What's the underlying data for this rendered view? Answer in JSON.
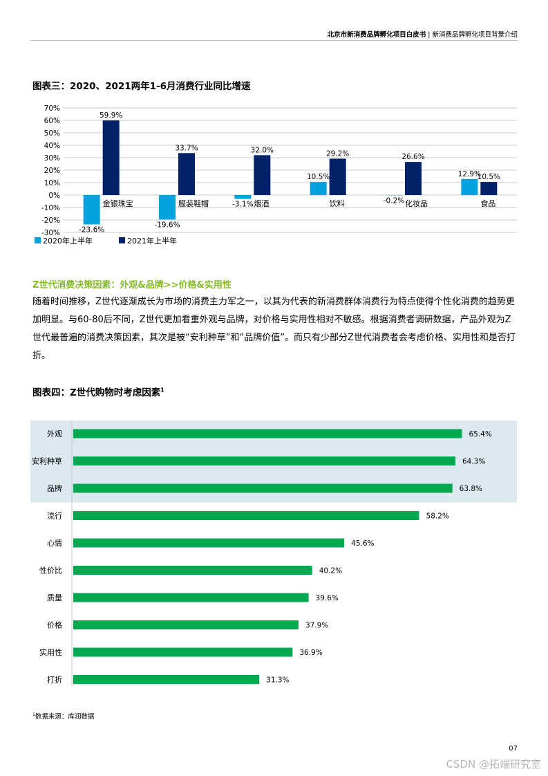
{
  "header": {
    "title": "北京市新消费品牌孵化项目白皮书",
    "separator": " | ",
    "section": "新消费品牌孵化项目背景介绍"
  },
  "figure3": {
    "title": "图表三：2020、2021两年1-6月消费行业同比增速"
  },
  "figure4": {
    "title": "图表四：Z世代购物时考虑因素",
    "title_sup": "1"
  },
  "section": {
    "title": "Z世代消费决策因素：外观&品牌>>价格&实用性",
    "paragraph": "随着时间推移，Z世代逐渐成长为市场的消费主力军之一，以其为代表的新消费群体消费行为特点使得个性化消费的趋势更加明显。与60-80后不同，Z世代更加看重外观与品牌，对价格与实用性相对不敏感。根据消费者调研数据，产品外观为Z世代最普遍的消费决策因素，其次是被“安利种草”和“品牌价值”。而只有少部分Z世代消费者会考虑价格、实用性和是否打折。"
  },
  "footnote": {
    "sup": "1",
    "text": "数据来源：库润数据"
  },
  "page_number": "07",
  "watermark": "CSDN @拓端研究室",
  "colors": {
    "series_2020": "#00a3e0",
    "series_2021": "#012169",
    "bar_green": "#00a94f",
    "highlight_band": "#dde9f1",
    "accent_green": "#86bc25"
  },
  "chart_data": [
    {
      "type": "bar",
      "title": "图表三：2020、2021两年1-6月消费行业同比增速",
      "categories": [
        "金银珠宝",
        "服装鞋帽",
        "烟酒",
        "饮料",
        "化妆品",
        "食品"
      ],
      "series": [
        {
          "name": "2020年上半年",
          "values": [
            -23.6,
            -19.6,
            -3.1,
            10.5,
            -0.2,
            12.9
          ],
          "labels": [
            "-23.6%",
            "-19.6%",
            "-3.1%",
            "10.5%",
            "-0.2%",
            "12.9%"
          ]
        },
        {
          "name": "2021年上半年",
          "values": [
            59.9,
            33.7,
            32.0,
            29.2,
            26.6,
            10.5
          ],
          "labels": [
            "59.9%",
            "33.7%",
            "32.0%",
            "29.2%",
            "26.6%",
            "10.5%"
          ]
        }
      ],
      "yticks": [
        "70%",
        "60%",
        "50%",
        "40%",
        "30%",
        "20%",
        "10%",
        "0%",
        "-10%",
        "-20%",
        "-30%"
      ],
      "ylim": [
        -30,
        70
      ],
      "grid": true,
      "legend": "bottom-left"
    },
    {
      "type": "bar",
      "orientation": "horizontal",
      "title": "图表四：Z世代购物时考虑因素",
      "categories": [
        "外观",
        "安利种草",
        "品牌",
        "流行",
        "心情",
        "性价比",
        "质量",
        "价格",
        "实用性",
        "打折"
      ],
      "values": [
        65.4,
        64.3,
        63.8,
        58.2,
        45.6,
        40.2,
        39.6,
        37.9,
        36.9,
        31.3
      ],
      "labels": [
        "65.4%",
        "64.3%",
        "63.8%",
        "58.2%",
        "45.6%",
        "40.2%",
        "39.6%",
        "37.9%",
        "36.9%",
        "31.3%"
      ],
      "highlighted": [
        "外观",
        "安利种草",
        "品牌"
      ],
      "xlim": [
        0,
        100
      ]
    }
  ]
}
